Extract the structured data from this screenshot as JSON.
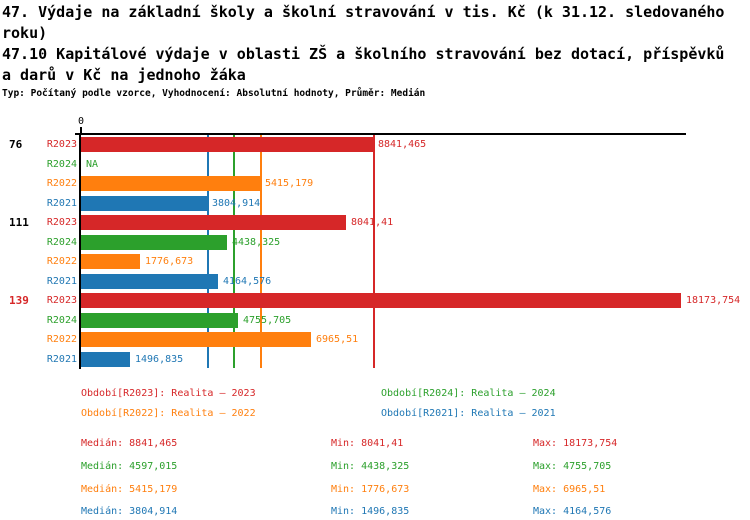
{
  "header": {
    "title_line1": "47. Výdaje na základní školy a školní stravování v tis. Kč (k 31.12. sledovaného roku)",
    "title_line2": "47.10 Kapitálové výdaje v oblasti ZŠ a školního stravování bez dotací, příspěvků a darů v Kč na jednoho žáka",
    "meta": "Typ: Počítaný podle vzorce, Vyhodnocení: Absolutní hodnoty, Průměr: Medián"
  },
  "colors": {
    "r2023": "#d62728",
    "r2024": "#2ca02c",
    "r2022": "#ff7f0e",
    "r2021": "#1f77b4",
    "axis": "#000000",
    "background": "#ffffff"
  },
  "chart_data": {
    "type": "bar",
    "orientation": "horizontal",
    "title": "47.10 Kapitálové výdaje v oblasti ZŠ a školního stravování bez dotací, příspěvků a darů v Kč na jednoho žáka",
    "xlabel": "",
    "ylabel": "",
    "axis_zero_label": "0",
    "xlim": [
      0,
      18333
    ],
    "grid": false,
    "categories": [
      "76",
      "111",
      "139"
    ],
    "series_order": [
      "R2023",
      "R2024",
      "R2022",
      "R2021"
    ],
    "series": [
      {
        "name": "R2023",
        "color": "#d62728",
        "values": [
          8841.465,
          8041.41,
          18173.754
        ]
      },
      {
        "name": "R2024",
        "color": "#2ca02c",
        "values": [
          null,
          4438.325,
          4755.705
        ]
      },
      {
        "name": "R2022",
        "color": "#ff7f0e",
        "values": [
          5415.179,
          1776.673,
          6965.51
        ]
      },
      {
        "name": "R2021",
        "color": "#1f77b4",
        "values": [
          3804.914,
          4164.576,
          1496.835
        ]
      }
    ],
    "groups": [
      {
        "label": "76",
        "label_color": "#000000",
        "bars": [
          {
            "series": "R2023",
            "value": 8841.465,
            "value_label": "8841,465",
            "color": "#d62728"
          },
          {
            "series": "R2024",
            "value": null,
            "value_label": "NA",
            "color": "#2ca02c"
          },
          {
            "series": "R2022",
            "value": 5415.179,
            "value_label": "5415,179",
            "color": "#ff7f0e"
          },
          {
            "series": "R2021",
            "value": 3804.914,
            "value_label": "3804,914",
            "color": "#1f77b4"
          }
        ]
      },
      {
        "label": "111",
        "label_color": "#000000",
        "bars": [
          {
            "series": "R2023",
            "value": 8041.41,
            "value_label": "8041,41",
            "color": "#d62728"
          },
          {
            "series": "R2024",
            "value": 4438.325,
            "value_label": "4438,325",
            "color": "#2ca02c"
          },
          {
            "series": "R2022",
            "value": 1776.673,
            "value_label": "1776,673",
            "color": "#ff7f0e"
          },
          {
            "series": "R2021",
            "value": 4164.576,
            "value_label": "4164,576",
            "color": "#1f77b4"
          }
        ]
      },
      {
        "label": "139",
        "label_color": "#d62728",
        "bars": [
          {
            "series": "R2023",
            "value": 18173.754,
            "value_label": "18173,754",
            "color": "#d62728"
          },
          {
            "series": "R2024",
            "value": 4755.705,
            "value_label": "4755,705",
            "color": "#2ca02c"
          },
          {
            "series": "R2022",
            "value": 6965.51,
            "value_label": "6965,51",
            "color": "#ff7f0e"
          },
          {
            "series": "R2021",
            "value": 1496.835,
            "value_label": "1496,835",
            "color": "#1f77b4"
          }
        ]
      }
    ],
    "median_lines": [
      {
        "series": "R2023",
        "value": 8841.465,
        "color": "#d62728"
      },
      {
        "series": "R2024",
        "value": 4597.015,
        "color": "#2ca02c"
      },
      {
        "series": "R2022",
        "value": 5415.179,
        "color": "#ff7f0e"
      },
      {
        "series": "R2021",
        "value": 3804.914,
        "color": "#1f77b4"
      }
    ]
  },
  "legend": {
    "items": [
      {
        "series": "R2023",
        "label": "Období[R2023]: Realita – 2023",
        "color": "#d62728"
      },
      {
        "series": "R2024",
        "label": "Období[R2024]: Realita – 2024",
        "color": "#2ca02c"
      },
      {
        "series": "R2022",
        "label": "Období[R2022]: Realita – 2022",
        "color": "#ff7f0e"
      },
      {
        "series": "R2021",
        "label": "Období[R2021]: Realita – 2021",
        "color": "#1f77b4"
      }
    ]
  },
  "stats": {
    "rows": [
      {
        "series": "R2023",
        "median": "Medián: 8841,465",
        "min": "Min: 8041,41",
        "max": "Max: 18173,754",
        "color": "#d62728"
      },
      {
        "series": "R2024",
        "median": "Medián: 4597,015",
        "min": "Min: 4438,325",
        "max": "Max: 4755,705",
        "color": "#2ca02c"
      },
      {
        "series": "R2022",
        "median": "Medián: 5415,179",
        "min": "Min: 1776,673",
        "max": "Max: 6965,51",
        "color": "#ff7f0e"
      },
      {
        "series": "R2021",
        "median": "Medián: 3804,914",
        "min": "Min: 1496,835",
        "max": "Max: 4164,576",
        "color": "#1f77b4"
      }
    ]
  }
}
